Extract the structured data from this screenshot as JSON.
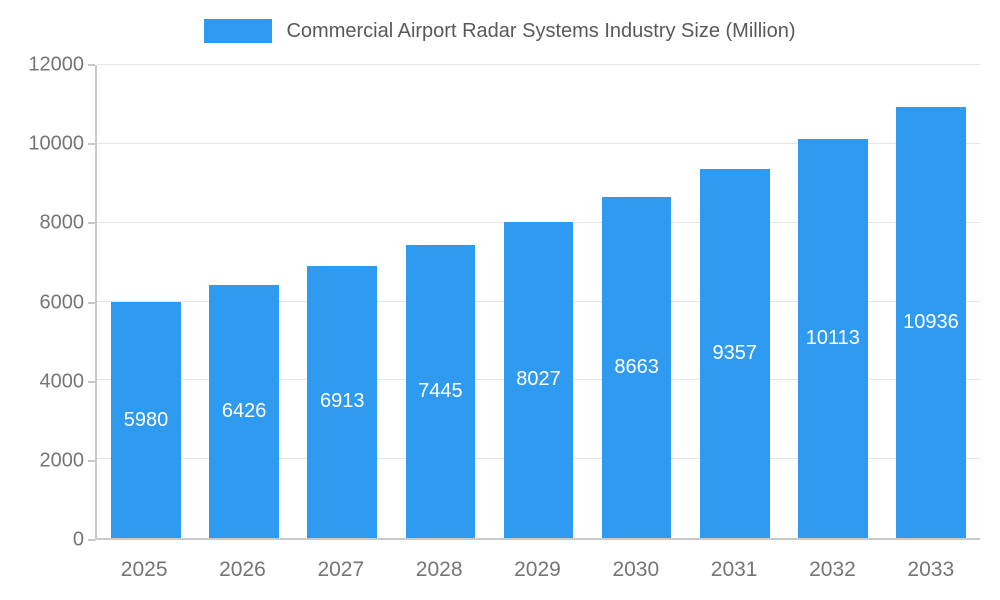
{
  "legend": {
    "label": "Commercial Airport Radar Systems Industry Size (Million)"
  },
  "chart_data": {
    "type": "bar",
    "title": "Commercial Airport Radar Systems Industry Size (Million)",
    "categories": [
      "2025",
      "2026",
      "2027",
      "2028",
      "2029",
      "2030",
      "2031",
      "2032",
      "2033"
    ],
    "values": [
      5980,
      6426,
      6913,
      7445,
      8027,
      8663,
      9357,
      10113,
      10936
    ],
    "xlabel": "",
    "ylabel": "",
    "ylim": [
      0,
      12000
    ],
    "yticks": [
      0,
      2000,
      4000,
      6000,
      8000,
      10000,
      12000
    ],
    "grid": true,
    "legend_position": "top",
    "colors": {
      "bar": "#2f9bf0",
      "bar_label": "#ffffff",
      "grid": "#e5e5e5",
      "axis": "#c9c9c9",
      "tick_text": "#757575",
      "title_text": "#595959",
      "background": "#ffffff"
    }
  }
}
